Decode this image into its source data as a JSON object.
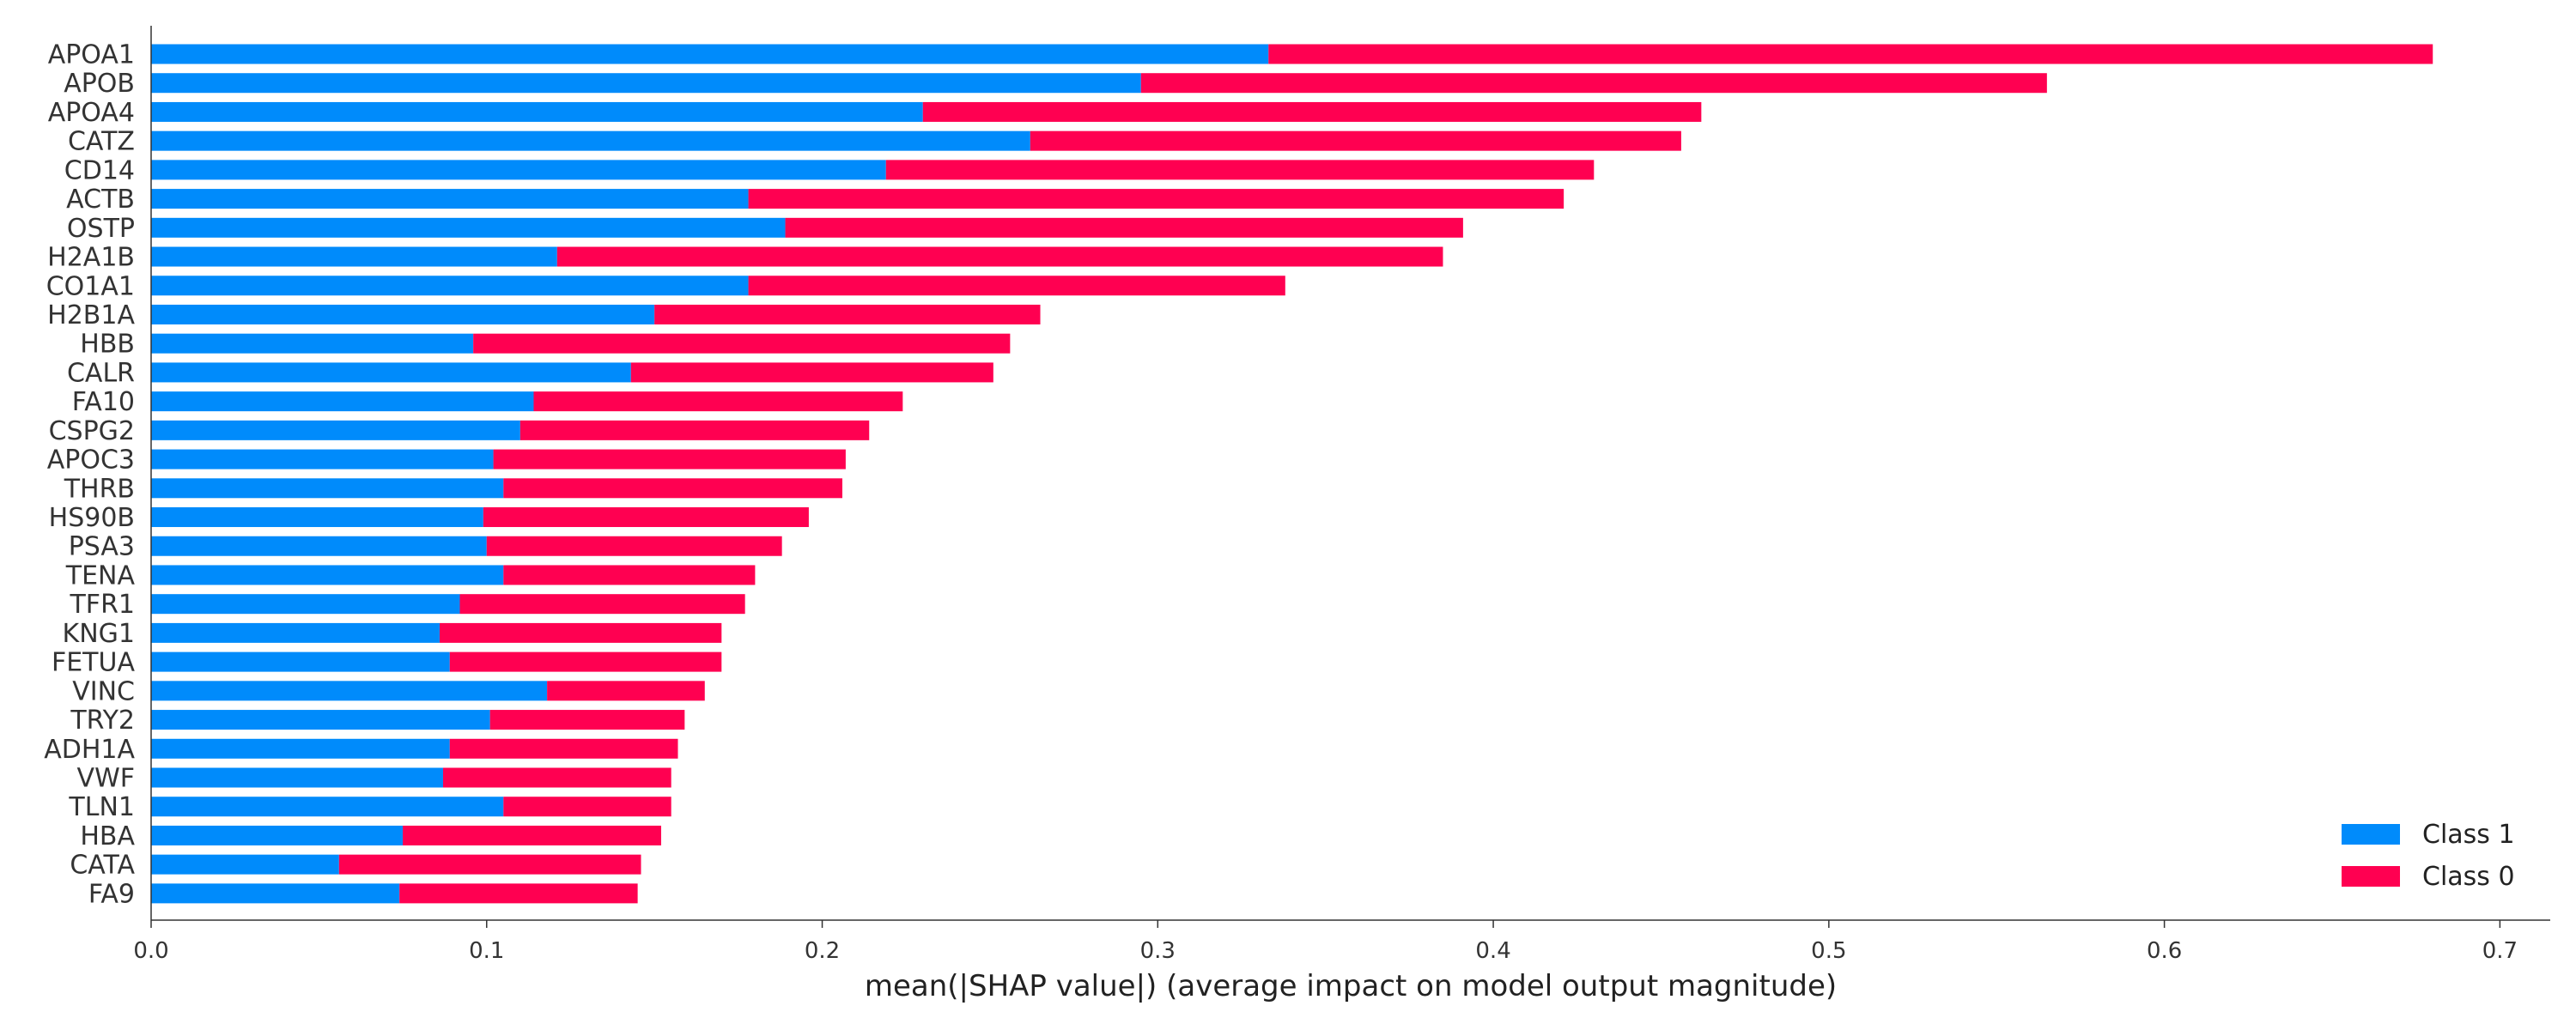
{
  "chart_data": {
    "type": "bar",
    "orientation": "horizontal",
    "stacked": true,
    "categories": [
      "APOA1",
      "APOB",
      "APOA4",
      "CATZ",
      "CD14",
      "ACTB",
      "OSTP",
      "H2A1B",
      "CO1A1",
      "H2B1A",
      "HBB",
      "CALR",
      "FA10",
      "CSPG2",
      "APOC3",
      "THRB",
      "HS90B",
      "PSA3",
      "TENA",
      "TFR1",
      "KNG1",
      "FETUA",
      "VINC",
      "TRY2",
      "ADH1A",
      "VWF",
      "TLN1",
      "HBA",
      "CATA",
      "FA9"
    ],
    "series": [
      {
        "name": "Class 1",
        "color": "#008bfb",
        "values": [
          0.333,
          0.295,
          0.23,
          0.262,
          0.219,
          0.178,
          0.189,
          0.121,
          0.178,
          0.15,
          0.096,
          0.143,
          0.114,
          0.11,
          0.102,
          0.105,
          0.099,
          0.1,
          0.105,
          0.092,
          0.086,
          0.089,
          0.118,
          0.101,
          0.089,
          0.087,
          0.105,
          0.075,
          0.056,
          0.074
        ]
      },
      {
        "name": "Class 0",
        "color": "#ff0051",
        "values": [
          0.347,
          0.27,
          0.232,
          0.194,
          0.211,
          0.243,
          0.202,
          0.264,
          0.16,
          0.115,
          0.16,
          0.108,
          0.11,
          0.104,
          0.105,
          0.101,
          0.097,
          0.088,
          0.075,
          0.085,
          0.084,
          0.081,
          0.047,
          0.058,
          0.068,
          0.068,
          0.05,
          0.077,
          0.09,
          0.071
        ]
      }
    ],
    "xlabel": "mean(|SHAP value|) (average impact on model output magnitude)",
    "ylabel": "",
    "title": "",
    "xlim": [
      0.0,
      0.715
    ],
    "xticks": [
      0.0,
      0.1,
      0.2,
      0.3,
      0.4,
      0.5,
      0.6,
      0.7
    ],
    "xtick_labels": [
      "0.0",
      "0.1",
      "0.2",
      "0.3",
      "0.4",
      "0.5",
      "0.6",
      "0.7"
    ],
    "grid": false,
    "legend_position": "bottom-right"
  }
}
